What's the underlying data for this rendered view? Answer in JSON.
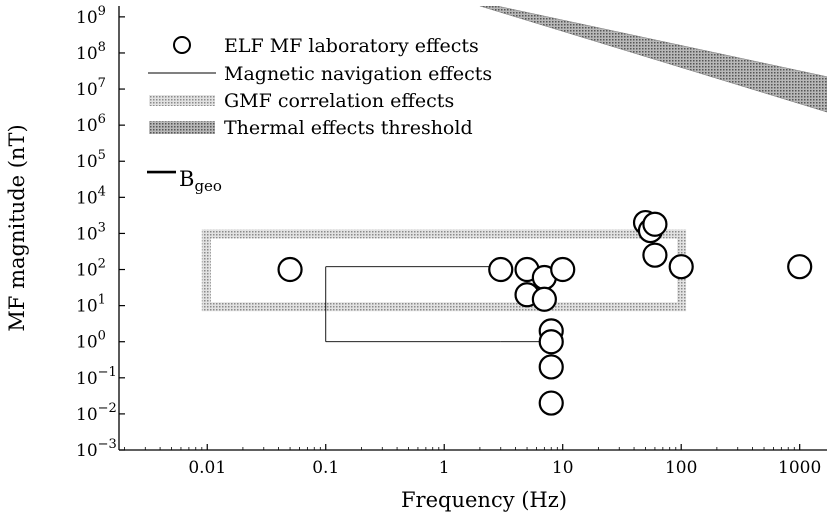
{
  "chart_data": {
    "type": "scatter",
    "xlabel": "Frequency (Hz)",
    "ylabel": "MF magnitude (nT)",
    "x_scale": "log",
    "y_scale": "log",
    "xlim": [
      0.0018,
      1700
    ],
    "ylim": [
      0.001,
      2000000000
    ],
    "x_ticks": [
      {
        "value": 0.01,
        "label": "0.01"
      },
      {
        "value": 0.1,
        "label": "0.1"
      },
      {
        "value": 1,
        "label": "1"
      },
      {
        "value": 10,
        "label": "10"
      },
      {
        "value": 100,
        "label": "100"
      },
      {
        "value": 1000,
        "label": "1000"
      }
    ],
    "y_ticks": [
      {
        "value": 0.001,
        "base": "10",
        "exp": "−3"
      },
      {
        "value": 0.01,
        "base": "10",
        "exp": "−2"
      },
      {
        "value": 0.1,
        "base": "10",
        "exp": "−1"
      },
      {
        "value": 1,
        "base": "10",
        "exp": "0"
      },
      {
        "value": 10,
        "base": "10",
        "exp": "1"
      },
      {
        "value": 100,
        "base": "10",
        "exp": "2"
      },
      {
        "value": 1000,
        "base": "10",
        "exp": "3"
      },
      {
        "value": 10000,
        "base": "10",
        "exp": "4"
      },
      {
        "value": 100000,
        "base": "10",
        "exp": "5"
      },
      {
        "value": 1000000,
        "base": "10",
        "exp": "6"
      },
      {
        "value": 10000000,
        "base": "10",
        "exp": "7"
      },
      {
        "value": 100000000,
        "base": "10",
        "exp": "8"
      },
      {
        "value": 1000000000,
        "base": "10",
        "exp": "9"
      }
    ],
    "legend_placement": "top-left",
    "legend": [
      {
        "label": "ELF MF laboratory effects",
        "marker": "circle"
      },
      {
        "label": "Magnetic navigation effects",
        "marker": "line"
      },
      {
        "label": "GMF correlation effects",
        "marker": "dotted-band"
      },
      {
        "label": "Thermal effects threshold",
        "marker": "dark-band"
      }
    ],
    "elf_lab_points": [
      {
        "x": 0.05,
        "y": 100
      },
      {
        "x": 3,
        "y": 100
      },
      {
        "x": 5,
        "y": 100
      },
      {
        "x": 5,
        "y": 20
      },
      {
        "x": 7,
        "y": 60
      },
      {
        "x": 7,
        "y": 15
      },
      {
        "x": 10,
        "y": 100
      },
      {
        "x": 8,
        "y": 2
      },
      {
        "x": 8,
        "y": 1
      },
      {
        "x": 8,
        "y": 0.2
      },
      {
        "x": 8,
        "y": 0.02
      },
      {
        "x": 50,
        "y": 2000
      },
      {
        "x": 55,
        "y": 1200
      },
      {
        "x": 60,
        "y": 1800
      },
      {
        "x": 60,
        "y": 250
      },
      {
        "x": 100,
        "y": 120
      },
      {
        "x": 1000,
        "y": 120
      }
    ],
    "magnetic_navigation_lines": [
      {
        "from": [
          0.1,
          120
        ],
        "to": [
          3,
          120
        ]
      },
      {
        "from": [
          0.1,
          120
        ],
        "to": [
          0.1,
          1
        ]
      },
      {
        "from": [
          0.1,
          1
        ],
        "to": [
          3,
          1
        ]
      },
      {
        "from": [
          3,
          1
        ],
        "to": [
          8,
          1
        ]
      }
    ],
    "gmf_correlation_region": {
      "x_min": 0.009,
      "x_max": 110,
      "y_min": 7,
      "y_max": 1300
    },
    "thermal_threshold_band": {
      "upper": [
        {
          "x": 2.8,
          "y": 2000000000
        },
        {
          "x": 1700,
          "y": 22000000
        }
      ],
      "lower": [
        {
          "x": 2.0,
          "y": 2000000000
        },
        {
          "x": 1700,
          "y": 2300000
        }
      ]
    },
    "annotations": [
      {
        "text": "B",
        "subscript": "geo",
        "y": 50000
      }
    ],
    "colors": {
      "markers": "#000000",
      "gmf_band": "#bdbdbd",
      "thermal_band": "#9a9a9a"
    }
  }
}
